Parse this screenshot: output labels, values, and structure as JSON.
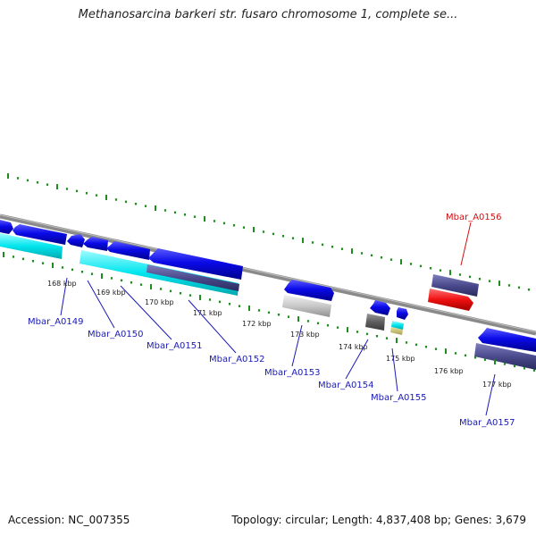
{
  "title": "Methanosarcina barkeri str. fusaro chromosome 1, complete se...",
  "footer": {
    "accession": "Accession: NC_007355",
    "summary": "Topology: circular; Length: 4,837,408 bp; Genes: 3,679"
  },
  "ticks": [
    "168 kbp",
    "169 kbp",
    "170 kbp",
    "171 kbp",
    "172 kbp",
    "173 kbp",
    "174 kbp",
    "175 kbp",
    "176 kbp",
    "177 kbp"
  ],
  "genes": [
    {
      "label": "Mbar_A0149",
      "color": "#1a1ab8"
    },
    {
      "label": "Mbar_A0150",
      "color": "#1a1ab8"
    },
    {
      "label": "Mbar_A0151",
      "color": "#1a1ab8"
    },
    {
      "label": "Mbar_A0152",
      "color": "#1a1ab8"
    },
    {
      "label": "Mbar_A0153",
      "color": "#1a1ab8"
    },
    {
      "label": "Mbar_A0154",
      "color": "#1a1ab8"
    },
    {
      "label": "Mbar_A0155",
      "color": "#1a1ab8"
    },
    {
      "label": "Mbar_A0156",
      "color": "#d01010"
    },
    {
      "label": "Mbar_A0157",
      "color": "#1a1ab8"
    }
  ],
  "colors": {
    "cds": "#0a0ae8",
    "rna": "#00e5ee",
    "cog": "#4a4a8c",
    "red_cog": "#ee1010",
    "backbone": "#808080",
    "tick": "#1e8c1e"
  }
}
